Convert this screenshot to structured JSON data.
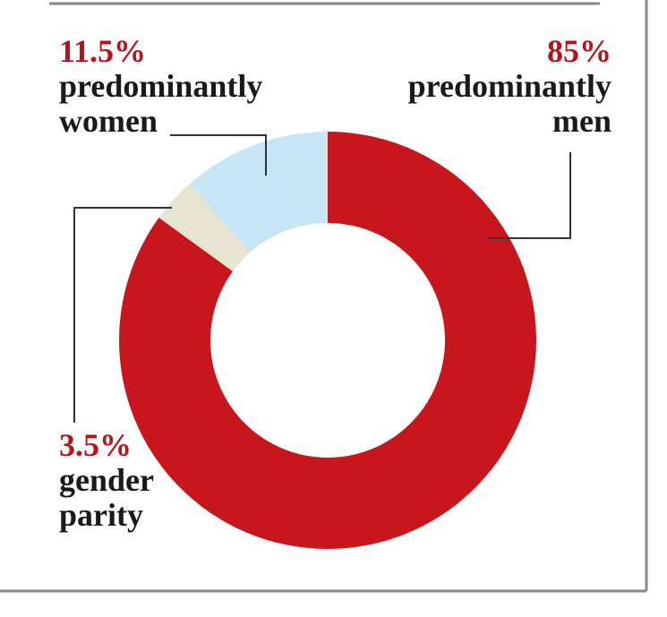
{
  "chart_data": {
    "type": "pie",
    "categories": [
      "predominantly men",
      "gender parity",
      "predominantly women"
    ],
    "values": [
      85,
      3.5,
      11.5
    ],
    "value_labels": [
      "85%",
      "3.5%",
      "11.5%"
    ],
    "colors": [
      "#c8161d",
      "#e8e4d2",
      "#c6e6f6"
    ]
  }
}
